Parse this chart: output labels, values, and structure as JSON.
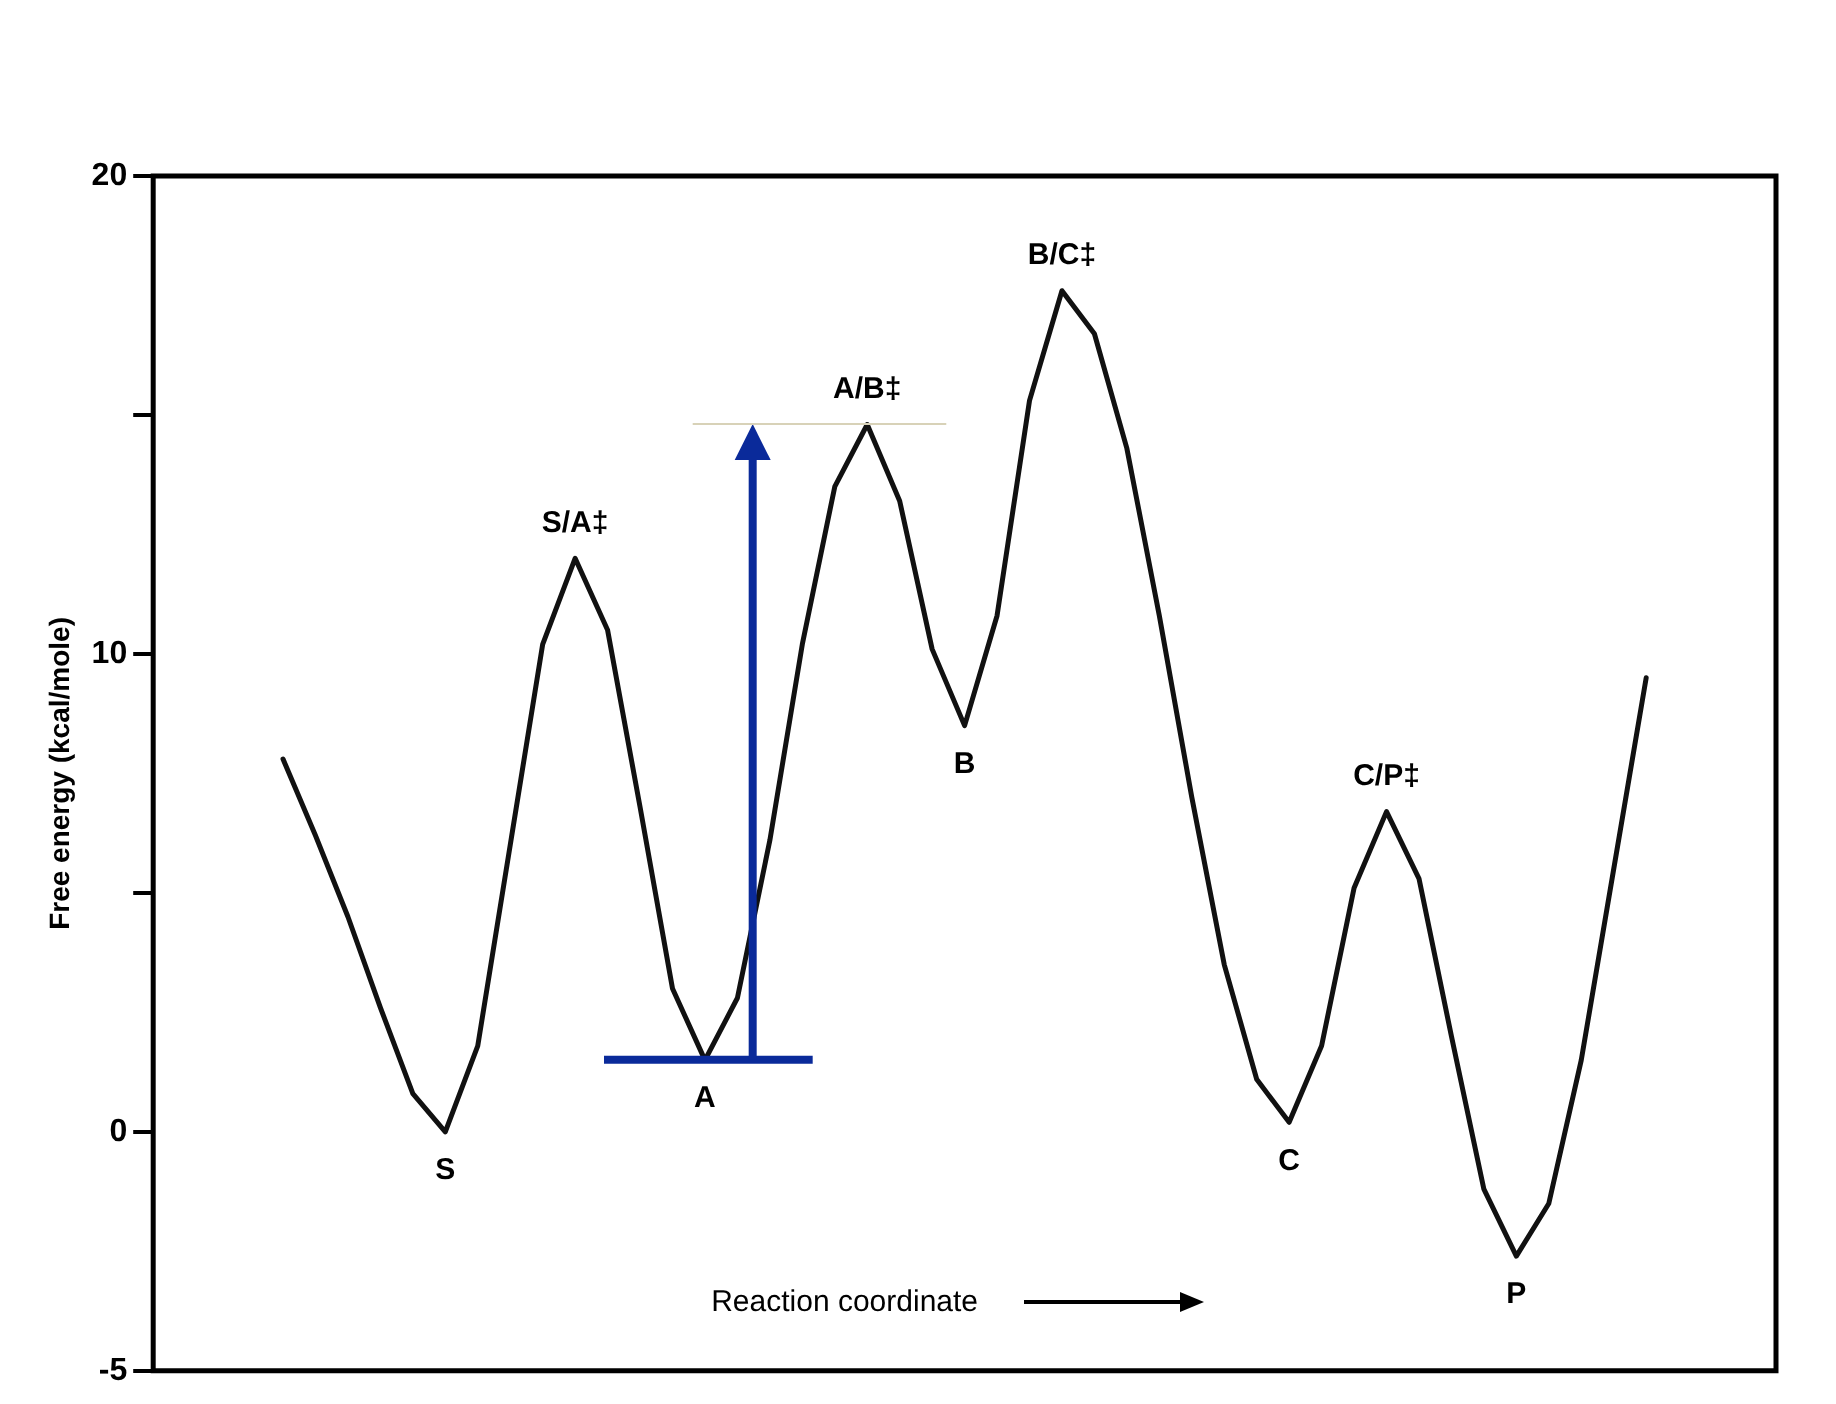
{
  "chart_data": {
    "type": "line",
    "ylabel": "Free energy (kcal/mole)",
    "xlabel": "Reaction coordinate",
    "categories": [
      null,
      null,
      null,
      null,
      null,
      null,
      null,
      null,
      null,
      null,
      null,
      null,
      null,
      null,
      null,
      null,
      null,
      null,
      null,
      null,
      null,
      null,
      null,
      null,
      null,
      null,
      null,
      null,
      null,
      null,
      null,
      null,
      null,
      null,
      null,
      null,
      null,
      null,
      null,
      null,
      null,
      null,
      null,
      null,
      null,
      null,
      null,
      null,
      null,
      null,
      null
    ],
    "series": [
      {
        "color": "#111111",
        "values": [
          null,
          null,
          null,
          null,
          7.8,
          6.2,
          4.5,
          2.6,
          0.8,
          0,
          1.8,
          6,
          10.2,
          12,
          10.5,
          6.8,
          3.0,
          1.5,
          2.8,
          6.1,
          10.2,
          13.5,
          14.8,
          13.2,
          10.1,
          8.5,
          10.8,
          15.3,
          17.6,
          16.7,
          14.3,
          10.8,
          7.0,
          3.5,
          1.1,
          0.2,
          1.8,
          5.1,
          6.7,
          5.3,
          2.0,
          -1.2,
          -2.6,
          -1.5,
          1.5,
          5.5,
          9.5,
          null,
          null,
          null,
          null
        ]
      }
    ],
    "ylim": [
      -5,
      20
    ],
    "yticks": [
      -5,
      0,
      {
        "value": 5,
        "label": null
      },
      10,
      {
        "value": 15,
        "label": null
      },
      20
    ],
    "tick_labels": "y",
    "marker": "none",
    "line_style": "solid",
    "grid": false,
    "legend": false,
    "annotations": [
      {
        "text": "S",
        "y": 0
      },
      {
        "text": "S/A‡",
        "y": 12
      },
      {
        "text": "A",
        "y": 1.5
      },
      {
        "text": "A/B‡",
        "y": 14.8
      },
      {
        "text": "B",
        "y": 8.5
      },
      {
        "text": "B/C‡",
        "y": 17.6
      },
      {
        "text": "C",
        "y": 0.2
      },
      {
        "text": "C/P‡",
        "y": 6.7
      },
      {
        "text": "P",
        "y": -2.6
      }
    ]
  }
}
